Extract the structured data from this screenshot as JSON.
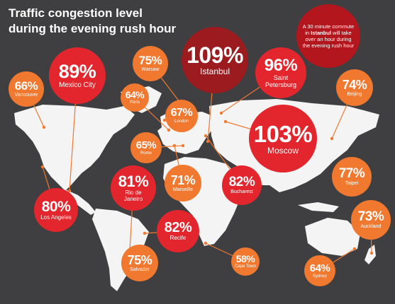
{
  "title_line1": "Traffic congestion level",
  "title_line2": "during the evening rush hour",
  "note": {
    "pre": "A 30 minute commute in ",
    "city": "Istanbul",
    "post": " will take over an hour during the evening rush hour"
  },
  "colors": {
    "background": "#3f3f41",
    "land": "#f4f4f4",
    "dark_red": "#9b1b1f",
    "red": "#e3262d",
    "orange": "#f0782f",
    "leader": "#f0782f"
  },
  "chart_data": {
    "type": "bubble-map",
    "title": "Traffic congestion level during the evening rush hour",
    "unit": "%",
    "cities": [
      {
        "city": "Istanbul",
        "value": 109,
        "tier": "dark_red"
      },
      {
        "city": "Moscow",
        "value": 103,
        "tier": "red"
      },
      {
        "city": "Saint Petersburg",
        "value": 96,
        "tier": "red"
      },
      {
        "city": "Mexico City",
        "value": 89,
        "tier": "red"
      },
      {
        "city": "Bucharest",
        "value": 82,
        "tier": "red"
      },
      {
        "city": "Recife",
        "value": 82,
        "tier": "red"
      },
      {
        "city": "Rio de Janeiro",
        "value": 81,
        "tier": "red"
      },
      {
        "city": "Los Angeles",
        "value": 80,
        "tier": "red"
      },
      {
        "city": "Taipei",
        "value": 77,
        "tier": "orange"
      },
      {
        "city": "Warsaw",
        "value": 75,
        "tier": "orange"
      },
      {
        "city": "Salvador",
        "value": 75,
        "tier": "orange"
      },
      {
        "city": "Beijing",
        "value": 74,
        "tier": "orange"
      },
      {
        "city": "Auckland",
        "value": 73,
        "tier": "orange"
      },
      {
        "city": "Marseille",
        "value": 71,
        "tier": "orange"
      },
      {
        "city": "London",
        "value": 67,
        "tier": "orange"
      },
      {
        "city": "Vancouver",
        "value": 66,
        "tier": "orange"
      },
      {
        "city": "Rome",
        "value": 65,
        "tier": "orange"
      },
      {
        "city": "Paris",
        "value": 64,
        "tier": "orange"
      },
      {
        "city": "Sydney",
        "value": 64,
        "tier": "orange"
      },
      {
        "city": "Cape Town",
        "value": 58,
        "tier": "orange"
      }
    ]
  }
}
